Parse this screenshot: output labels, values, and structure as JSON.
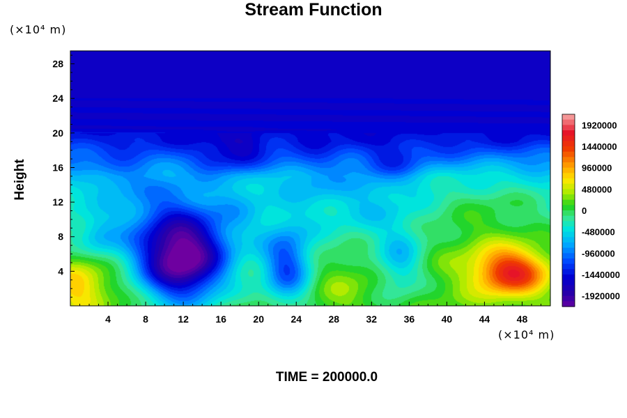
{
  "chart_data": {
    "type": "heatmap",
    "title": "Stream Function",
    "ylabel": "Height",
    "y_unit": "(×10⁴ m)",
    "x_unit": "(×10⁴ m)",
    "footer": "TIME = 200000.0",
    "xlim": [
      0,
      51
    ],
    "ylim": [
      0,
      29.5
    ],
    "x_ticks": [
      4,
      8,
      12,
      16,
      20,
      24,
      28,
      32,
      36,
      40,
      44,
      48
    ],
    "y_ticks": [
      4,
      8,
      12,
      16,
      20,
      24,
      28
    ],
    "colorbar": {
      "range": [
        -2160000,
        2160000
      ],
      "ticks": [
        1920000,
        1440000,
        960000,
        480000,
        0,
        -480000,
        -960000,
        -1440000,
        -1920000
      ],
      "tick_labels": [
        "1920000",
        "1440000",
        "960000",
        "480000",
        "0",
        "-480000",
        "-960000",
        "-1440000",
        "-1920000"
      ]
    },
    "background_by_height": [
      {
        "y": 0,
        "value": 150000
      },
      {
        "y": 4,
        "value": 0
      },
      {
        "y": 8,
        "value": -180000
      },
      {
        "y": 12,
        "value": -300000
      },
      {
        "y": 15,
        "value": -500000
      },
      {
        "y": 17,
        "value": -900000
      },
      {
        "y": 19,
        "value": -1300000
      },
      {
        "y": 21,
        "value": -1500000
      },
      {
        "y": 30,
        "value": -1560000
      }
    ],
    "features": [
      {
        "x": 12,
        "y": 5,
        "value": -1850000,
        "sx": 3.2,
        "sy": 3.5
      },
      {
        "x": 11,
        "y": 8,
        "value": -600000,
        "sx": 4.0,
        "sy": 4.0
      },
      {
        "x": 23,
        "y": 4.5,
        "value": -1100000,
        "sx": 1.8,
        "sy": 3.2
      },
      {
        "x": 35,
        "y": 5,
        "value": -550000,
        "sx": 1.7,
        "sy": 2.8
      },
      {
        "x": 47,
        "y": 3.8,
        "value": 1350000,
        "sx": 2.6,
        "sy": 1.8
      },
      {
        "x": 45,
        "y": 6,
        "value": 500000,
        "sx": 5.0,
        "sy": 3.5
      },
      {
        "x": 0.5,
        "y": 2.5,
        "value": 700000,
        "sx": 2.0,
        "sy": 2.5
      },
      {
        "x": 4,
        "y": 2.5,
        "value": 250000,
        "sx": 2.5,
        "sy": 2.0
      },
      {
        "x": 29,
        "y": 3,
        "value": 300000,
        "sx": 2.5,
        "sy": 2.5
      },
      {
        "x": 44,
        "y": 12.5,
        "value": 200000,
        "sx": 5.0,
        "sy": 2.5
      },
      {
        "x": 18,
        "y": 17.5,
        "value": -500000,
        "sx": 1.8,
        "sy": 1.5
      },
      {
        "x": 15,
        "y": 17,
        "value": -300000,
        "sx": 1.5,
        "sy": 1.2
      },
      {
        "x": 34,
        "y": 16.5,
        "value": -400000,
        "sx": 2.2,
        "sy": 1.5
      },
      {
        "x": 5,
        "y": 15,
        "value": -300000,
        "sx": 2.0,
        "sy": 1.5
      },
      {
        "x": 26,
        "y": 15,
        "value": -250000,
        "sx": 2.0,
        "sy": 2.5
      },
      {
        "x": 9,
        "y": 12,
        "value": -150000,
        "sx": 3.0,
        "sy": 2.0
      },
      {
        "x": 32,
        "y": 12,
        "value": -250000,
        "sx": 3.0,
        "sy": 2.5
      },
      {
        "x": 3,
        "y": 8,
        "value": -400000,
        "sx": 1.5,
        "sy": 1.5
      },
      {
        "x": 18,
        "y": 11,
        "value": -200000,
        "sx": 2.0,
        "sy": 2.0
      }
    ]
  }
}
